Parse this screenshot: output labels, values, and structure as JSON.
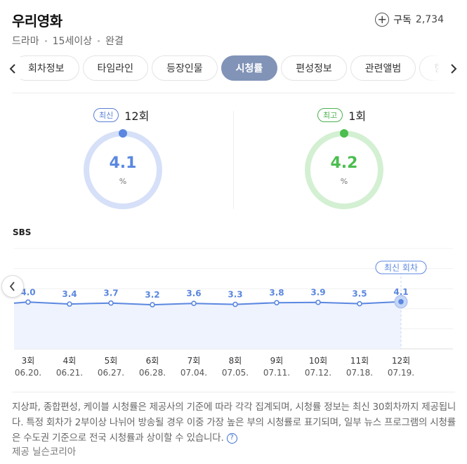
{
  "header": {
    "title": "우리영화",
    "meta": [
      "드라마",
      "15세이상",
      "완결"
    ],
    "subscribe_label": "구독",
    "subscribe_count": "2,734"
  },
  "tabs": [
    {
      "label": "회차정보"
    },
    {
      "label": "타임라인"
    },
    {
      "label": "등장인물"
    },
    {
      "label": "시청률",
      "active": true
    },
    {
      "label": "편성정보"
    },
    {
      "label": "관련앨범"
    },
    {
      "label": "함께 볼만한"
    }
  ],
  "gauges": {
    "latest": {
      "badge": "최신",
      "episode": "12회",
      "value": "4.1",
      "unit": "%",
      "color": "#5b87e0",
      "track": "#d6e0f8"
    },
    "best": {
      "badge": "최고",
      "episode": "1회",
      "value": "4.2",
      "unit": "%",
      "color": "#4cbd4f",
      "track": "#d3f0d2"
    }
  },
  "chart_data": {
    "type": "line",
    "channel": "SBS",
    "categories": [
      "3회",
      "4회",
      "5회",
      "6회",
      "7회",
      "8회",
      "9회",
      "10회",
      "11회",
      "12회"
    ],
    "dates": [
      "06.20.",
      "06.21.",
      "06.27.",
      "06.28.",
      "07.04.",
      "07.05.",
      "07.11.",
      "07.12.",
      "07.18.",
      "07.19."
    ],
    "values": [
      4.0,
      3.4,
      3.7,
      3.2,
      3.6,
      3.3,
      3.8,
      3.9,
      3.5,
      4.1
    ],
    "ylim": [
      -10,
      20
    ],
    "latest_label": "최신 회차",
    "line_color": "#5b87e0",
    "fill_color": "#eef3fd"
  },
  "notice": "지상파, 종합편성, 케이블 시청률은 제공사의 기준에 따라 각각 집계되며, 시청률 정보는 최신 30회차까지 제공됩니다. 특정 회차가 2부이상 나뉘어 방송될 경우 이중 가장 높은 부의 시청률로 표기되며, 일부 뉴스 프로그램의 시청률은 수도권 기준으로 전국 시청률과 상이할 수 있습니다.",
  "provider": "제공 닐슨코리아"
}
